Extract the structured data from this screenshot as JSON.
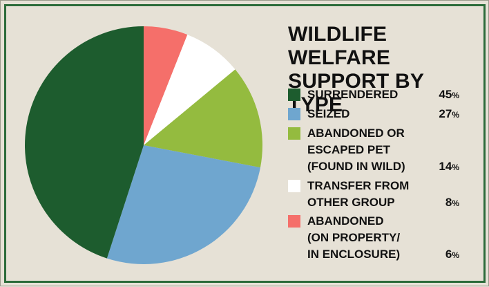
{
  "chart_data": {
    "type": "pie",
    "title": "WILDLIFE WELFARE\nSUPPORT BY TYPE",
    "slices": [
      {
        "label": "SURRENDERED",
        "value": 45,
        "color": "#1d5c2e"
      },
      {
        "label": "SEIZED",
        "value": 27,
        "color": "#6fa6cf"
      },
      {
        "label": "ABANDONED OR\nESCAPED PET\n(FOUND IN WILD)",
        "value": 14,
        "color": "#94bb3f"
      },
      {
        "label": "TRANSFER FROM\nOTHER GROUP",
        "value": 8,
        "color": "#ffffff"
      },
      {
        "label": "ABANDONED\n(ON PROPERTY/\nIN ENCLOSURE)",
        "value": 6,
        "color": "#f56f6a"
      }
    ],
    "pie_order": [
      4,
      3,
      2,
      1,
      0
    ],
    "start": "top",
    "direction": "clockwise",
    "value_suffix": "%"
  }
}
